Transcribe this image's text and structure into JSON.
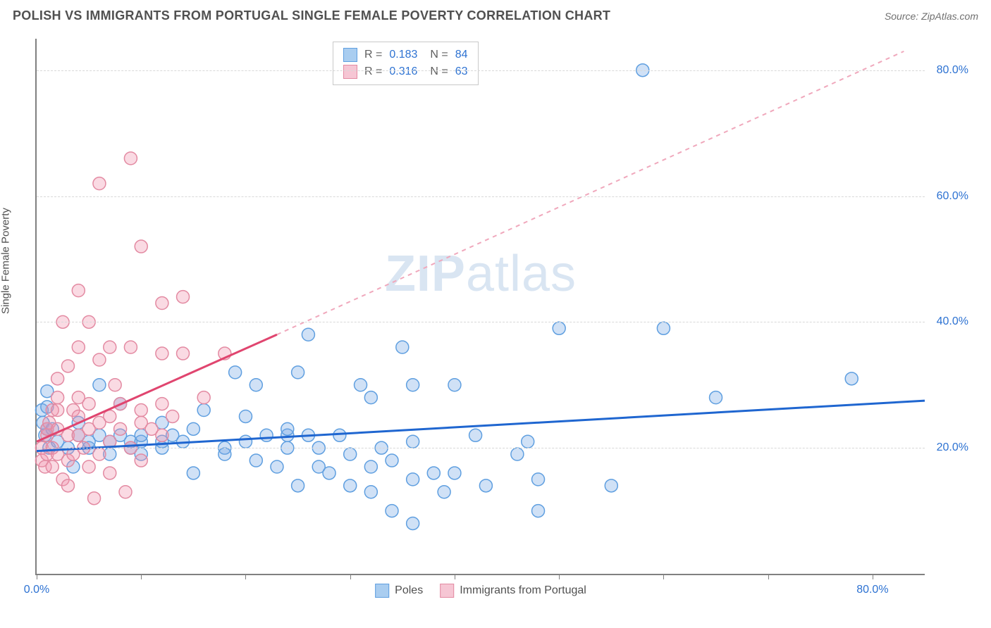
{
  "header": {
    "title": "POLISH VS IMMIGRANTS FROM PORTUGAL SINGLE FEMALE POVERTY CORRELATION CHART",
    "source": "Source: ZipAtlas.com"
  },
  "watermark": {
    "bold": "ZIP",
    "light": "atlas"
  },
  "chart": {
    "type": "scatter",
    "y_axis_label": "Single Female Poverty",
    "background_color": "#ffffff",
    "grid_color": "#d8d8d8",
    "axis_color": "#808080",
    "xlim": [
      0,
      85
    ],
    "ylim": [
      0,
      85
    ],
    "x_ticks": [
      0,
      10,
      20,
      30,
      40,
      50,
      60,
      70,
      80
    ],
    "x_tick_labels": {
      "0": "0.0%",
      "80": "80.0%"
    },
    "y_ticks": [
      20,
      40,
      60,
      80
    ],
    "y_tick_labels": {
      "20": "20.0%",
      "40": "40.0%",
      "60": "60.0%",
      "80": "80.0%"
    },
    "marker_radius": 9,
    "marker_stroke_width": 1.5,
    "series": [
      {
        "name": "Poles",
        "fill": "rgba(120,170,230,0.35)",
        "stroke": "#5f9fe0",
        "swatch_fill": "#a9cdf0",
        "swatch_border": "#5f9fe0",
        "R": "0.183",
        "N": "84",
        "trend": {
          "x1": 0,
          "y1": 19.5,
          "x2": 85,
          "y2": 27.5,
          "color": "#1f66d0",
          "width": 3,
          "dash": "none"
        },
        "points": [
          [
            0.5,
            26
          ],
          [
            0.6,
            24
          ],
          [
            0.8,
            22
          ],
          [
            1,
            23
          ],
          [
            1,
            26.5
          ],
          [
            1,
            29
          ],
          [
            1.2,
            20
          ],
          [
            1.5,
            23
          ],
          [
            2,
            21
          ],
          [
            3,
            20
          ],
          [
            3.5,
            17
          ],
          [
            4,
            22
          ],
          [
            4,
            24
          ],
          [
            5,
            20
          ],
          [
            5,
            21
          ],
          [
            6,
            22
          ],
          [
            6,
            30
          ],
          [
            7,
            19
          ],
          [
            7,
            21
          ],
          [
            8,
            22
          ],
          [
            8,
            27
          ],
          [
            9,
            21
          ],
          [
            9,
            20
          ],
          [
            10,
            19
          ],
          [
            10,
            21
          ],
          [
            10,
            22
          ],
          [
            12,
            20
          ],
          [
            12,
            21
          ],
          [
            12,
            24
          ],
          [
            13,
            22
          ],
          [
            14,
            21
          ],
          [
            15,
            23
          ],
          [
            15,
            16
          ],
          [
            16,
            26
          ],
          [
            18,
            20
          ],
          [
            18,
            19
          ],
          [
            19,
            32
          ],
          [
            20,
            21
          ],
          [
            20,
            25
          ],
          [
            21,
            18
          ],
          [
            21,
            30
          ],
          [
            22,
            22
          ],
          [
            23,
            17
          ],
          [
            24,
            20
          ],
          [
            24,
            22
          ],
          [
            24,
            23
          ],
          [
            25,
            14
          ],
          [
            25,
            32
          ],
          [
            26,
            22
          ],
          [
            26,
            38
          ],
          [
            27,
            17
          ],
          [
            27,
            20
          ],
          [
            28,
            16
          ],
          [
            29,
            22
          ],
          [
            30,
            19
          ],
          [
            30,
            14
          ],
          [
            31,
            30
          ],
          [
            32,
            13
          ],
          [
            32,
            17
          ],
          [
            32,
            28
          ],
          [
            33,
            20
          ],
          [
            34,
            18
          ],
          [
            34,
            10
          ],
          [
            35,
            36
          ],
          [
            36,
            30
          ],
          [
            36,
            15
          ],
          [
            36,
            21
          ],
          [
            36,
            8
          ],
          [
            38,
            16
          ],
          [
            39,
            13
          ],
          [
            40,
            30
          ],
          [
            40,
            16
          ],
          [
            42,
            22
          ],
          [
            43,
            14
          ],
          [
            46,
            19
          ],
          [
            47,
            21
          ],
          [
            48,
            10
          ],
          [
            48,
            15
          ],
          [
            50,
            39
          ],
          [
            55,
            14
          ],
          [
            58,
            80
          ],
          [
            60,
            39
          ],
          [
            65,
            28
          ],
          [
            78,
            31
          ]
        ]
      },
      {
        "name": "Immigrants from Portugal",
        "fill": "rgba(240,150,175,0.35)",
        "stroke": "#e38aa2",
        "swatch_fill": "#f6c6d4",
        "swatch_border": "#e38aa2",
        "R": "0.316",
        "N": "63",
        "trend_solid": {
          "x1": 0,
          "y1": 21,
          "x2": 23,
          "y2": 38,
          "color": "#e0456f",
          "width": 3
        },
        "trend_dashed": {
          "x1": 23,
          "y1": 38,
          "x2": 83,
          "y2": 83,
          "color": "#f0a8bc",
          "width": 2,
          "dash": "6 6"
        },
        "points": [
          [
            0.5,
            18
          ],
          [
            0.5,
            20
          ],
          [
            0.8,
            17
          ],
          [
            1,
            19
          ],
          [
            1,
            22
          ],
          [
            1,
            23
          ],
          [
            1.2,
            24
          ],
          [
            1.5,
            26
          ],
          [
            1.5,
            20
          ],
          [
            1.5,
            17
          ],
          [
            2,
            23
          ],
          [
            2,
            26
          ],
          [
            2,
            28
          ],
          [
            2,
            31
          ],
          [
            2,
            19
          ],
          [
            2.5,
            40
          ],
          [
            2.5,
            15
          ],
          [
            3,
            18
          ],
          [
            3,
            22
          ],
          [
            3,
            33
          ],
          [
            3,
            14
          ],
          [
            3.5,
            26
          ],
          [
            3.5,
            19
          ],
          [
            4,
            22
          ],
          [
            4,
            25
          ],
          [
            4,
            28
          ],
          [
            4,
            36
          ],
          [
            4,
            45
          ],
          [
            4.5,
            20
          ],
          [
            5,
            17
          ],
          [
            5,
            23
          ],
          [
            5,
            27
          ],
          [
            5,
            40
          ],
          [
            5.5,
            12
          ],
          [
            6,
            19
          ],
          [
            6,
            24
          ],
          [
            6,
            34
          ],
          [
            6,
            62
          ],
          [
            7,
            16
          ],
          [
            7,
            21
          ],
          [
            7,
            25
          ],
          [
            7,
            36
          ],
          [
            7.5,
            30
          ],
          [
            8,
            23
          ],
          [
            8,
            27
          ],
          [
            8.5,
            13
          ],
          [
            9,
            20
          ],
          [
            9,
            36
          ],
          [
            9,
            66
          ],
          [
            10,
            18
          ],
          [
            10,
            24
          ],
          [
            10,
            26
          ],
          [
            10,
            52
          ],
          [
            11,
            23
          ],
          [
            12,
            22
          ],
          [
            12,
            27
          ],
          [
            12,
            35
          ],
          [
            12,
            43
          ],
          [
            13,
            25
          ],
          [
            14,
            35
          ],
          [
            14,
            44
          ],
          [
            16,
            28
          ],
          [
            18,
            35
          ]
        ]
      }
    ],
    "legend_bottom": [
      {
        "label": "Poles",
        "fill": "#a9cdf0",
        "border": "#5f9fe0"
      },
      {
        "label": "Immigrants from Portugal",
        "fill": "#f6c6d4",
        "border": "#e38aa2"
      }
    ]
  }
}
